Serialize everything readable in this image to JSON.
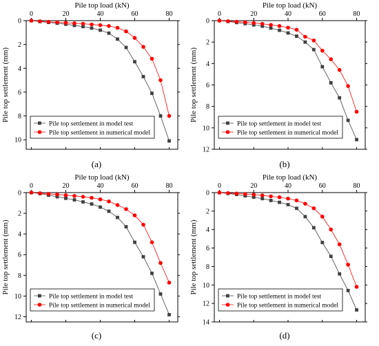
{
  "chart_data": [
    {
      "panel_label": "(a)",
      "type": "line",
      "title": "",
      "xlabel": "Pile top load (kN)",
      "ylabel": "Pile top settlement (mm)",
      "xlim": [
        -3,
        85
      ],
      "ylim": [
        0,
        10.8
      ],
      "xticks": [
        0,
        20,
        40,
        60,
        80
      ],
      "yticks": [
        0,
        2,
        4,
        6,
        8,
        10
      ],
      "x_axis_position": "top",
      "y_axis_inverted": true,
      "grid": false,
      "legend_position": "bottom-left",
      "series": [
        {
          "name": "Pile top settlement in model test",
          "marker": "square",
          "color": "#404040",
          "x": [
            0,
            5,
            10,
            15,
            20,
            25,
            30,
            35,
            40,
            45,
            50,
            55,
            60,
            65,
            70,
            75,
            80
          ],
          "y": [
            0,
            0.08,
            0.15,
            0.22,
            0.3,
            0.4,
            0.5,
            0.63,
            0.8,
            1.05,
            1.55,
            2.25,
            3.45,
            4.7,
            6.1,
            8.0,
            10.1
          ]
        },
        {
          "name": "Pile top settlement in numerical model",
          "marker": "circle",
          "color": "#ff0000",
          "x": [
            0,
            5,
            10,
            15,
            20,
            25,
            30,
            35,
            40,
            45,
            50,
            55,
            60,
            65,
            70,
            75,
            80
          ],
          "y": [
            0,
            0.05,
            0.1,
            0.14,
            0.18,
            0.22,
            0.26,
            0.32,
            0.38,
            0.45,
            0.6,
            0.9,
            1.45,
            2.2,
            3.2,
            5.0,
            8.0
          ]
        }
      ]
    },
    {
      "panel_label": "(b)",
      "type": "line",
      "title": "",
      "xlabel": "Pile top load (kN)",
      "ylabel": "Pile top settlement (mm)",
      "xlim": [
        -3,
        85
      ],
      "ylim": [
        0,
        12
      ],
      "xticks": [
        0,
        20,
        40,
        60,
        80
      ],
      "yticks": [
        0,
        2,
        4,
        6,
        8,
        10,
        12
      ],
      "x_axis_position": "top",
      "y_axis_inverted": true,
      "grid": false,
      "legend_position": "bottom-left",
      "series": [
        {
          "name": "Pile top settlement in model test",
          "marker": "square",
          "color": "#404040",
          "x": [
            0,
            5,
            10,
            15,
            20,
            25,
            30,
            35,
            40,
            45,
            50,
            55,
            60,
            65,
            70,
            75,
            80
          ],
          "y": [
            0,
            0.08,
            0.18,
            0.28,
            0.4,
            0.52,
            0.7,
            0.9,
            1.15,
            1.45,
            2.0,
            2.7,
            4.3,
            5.8,
            7.2,
            9.3,
            11.1
          ]
        },
        {
          "name": "Pile top settlement in numerical model",
          "marker": "circle",
          "color": "#ff0000",
          "x": [
            0,
            5,
            10,
            15,
            20,
            25,
            30,
            35,
            40,
            45,
            50,
            55,
            60,
            65,
            70,
            75,
            80
          ],
          "y": [
            0,
            0.05,
            0.1,
            0.15,
            0.22,
            0.3,
            0.4,
            0.5,
            0.65,
            0.85,
            1.5,
            1.85,
            2.8,
            3.6,
            4.6,
            6.1,
            8.5
          ]
        }
      ]
    },
    {
      "panel_label": "(c)",
      "type": "line",
      "title": "",
      "xlabel": "Pile top load (kN)",
      "ylabel": "Pile top settlement (mm)",
      "xlim": [
        -3,
        85
      ],
      "ylim": [
        0,
        12.5
      ],
      "xticks": [
        0,
        20,
        40,
        60,
        80
      ],
      "yticks": [
        0,
        2,
        4,
        6,
        8,
        10,
        12
      ],
      "x_axis_position": "top",
      "y_axis_inverted": true,
      "grid": false,
      "legend_position": "bottom-left",
      "series": [
        {
          "name": "Pile top settlement in model test",
          "marker": "square",
          "color": "#404040",
          "x": [
            0,
            5,
            10,
            15,
            20,
            25,
            30,
            35,
            40,
            45,
            50,
            55,
            60,
            65,
            70,
            75,
            80
          ],
          "y": [
            0,
            0.1,
            0.25,
            0.4,
            0.55,
            0.7,
            0.9,
            1.1,
            1.4,
            1.8,
            2.4,
            3.3,
            4.8,
            6.2,
            7.8,
            9.8,
            11.8
          ]
        },
        {
          "name": "Pile top settlement in numerical model",
          "marker": "circle",
          "color": "#ff0000",
          "x": [
            0,
            5,
            10,
            15,
            20,
            25,
            30,
            35,
            40,
            45,
            50,
            55,
            60,
            65,
            70,
            75,
            80
          ],
          "y": [
            0,
            0.06,
            0.12,
            0.18,
            0.25,
            0.32,
            0.4,
            0.5,
            0.65,
            0.85,
            1.2,
            1.6,
            2.2,
            3.1,
            4.8,
            6.8,
            8.7
          ]
        }
      ]
    },
    {
      "panel_label": "(d)",
      "type": "line",
      "title": "",
      "xlabel": "Pile top load (kN)",
      "ylabel": "Pile top settlement (mm)",
      "xlim": [
        -3,
        85
      ],
      "ylim": [
        0,
        14
      ],
      "xticks": [
        0,
        20,
        40,
        60,
        80
      ],
      "yticks": [
        0,
        2,
        4,
        6,
        8,
        10,
        12,
        14
      ],
      "x_axis_position": "top",
      "y_axis_inverted": true,
      "grid": false,
      "legend_position": "bottom-left",
      "series": [
        {
          "name": "Pile top settlement in model test",
          "marker": "square",
          "color": "#404040",
          "x": [
            0,
            5,
            10,
            15,
            20,
            25,
            30,
            35,
            40,
            45,
            50,
            55,
            60,
            65,
            70,
            75,
            80
          ],
          "y": [
            0,
            0.1,
            0.2,
            0.35,
            0.5,
            0.65,
            0.85,
            1.05,
            1.3,
            1.7,
            2.6,
            3.8,
            5.4,
            6.9,
            8.8,
            10.6,
            12.7
          ]
        },
        {
          "name": "Pile top settlement in numerical model",
          "marker": "circle",
          "color": "#ff0000",
          "x": [
            0,
            5,
            10,
            15,
            20,
            25,
            30,
            35,
            40,
            45,
            50,
            55,
            60,
            65,
            70,
            75,
            80
          ],
          "y": [
            0,
            0.05,
            0.1,
            0.15,
            0.22,
            0.3,
            0.4,
            0.5,
            0.65,
            0.85,
            1.2,
            1.7,
            2.6,
            4.0,
            5.6,
            7.8,
            10.2
          ]
        }
      ]
    }
  ]
}
